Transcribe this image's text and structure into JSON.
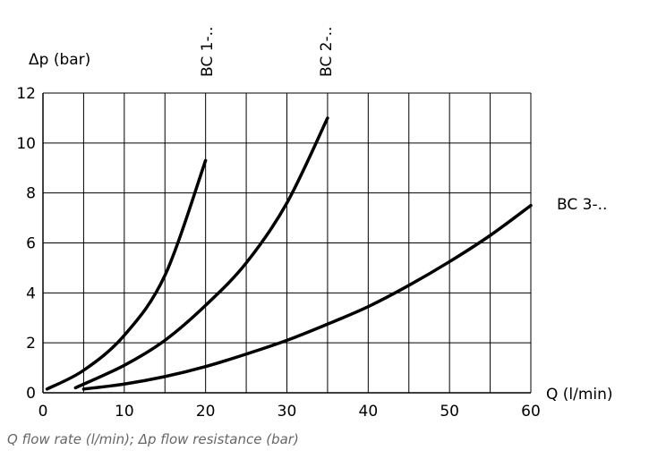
{
  "chart_data": {
    "type": "line",
    "ylabel": "Δp (bar)",
    "xlabel": "Q (l/min)",
    "xlim": [
      0,
      60
    ],
    "ylim": [
      0,
      12
    ],
    "x_ticks": [
      "0",
      "10",
      "20",
      "30",
      "40",
      "50",
      "60"
    ],
    "y_ticks": [
      "0",
      "2",
      "4",
      "6",
      "8",
      "10",
      "12"
    ],
    "grid": true,
    "series": [
      {
        "name": "BC 1-..",
        "x": [
          0.5,
          5,
          10,
          15,
          20
        ],
        "y": [
          0.15,
          0.9,
          2.3,
          4.7,
          9.3
        ]
      },
      {
        "name": "BC 2-..",
        "x": [
          4,
          10,
          15,
          20,
          25,
          30,
          35
        ],
        "y": [
          0.2,
          1.1,
          2.1,
          3.5,
          5.2,
          7.6,
          11.0
        ]
      },
      {
        "name": "BC 3-..",
        "x": [
          5,
          10,
          15,
          20,
          25,
          30,
          35,
          40,
          45,
          50,
          55,
          60
        ],
        "y": [
          0.15,
          0.35,
          0.65,
          1.05,
          1.55,
          2.1,
          2.75,
          3.45,
          4.3,
          5.25,
          6.3,
          7.5
        ]
      }
    ]
  },
  "caption": "Q flow rate (l/min); Δp flow resistance (bar)"
}
